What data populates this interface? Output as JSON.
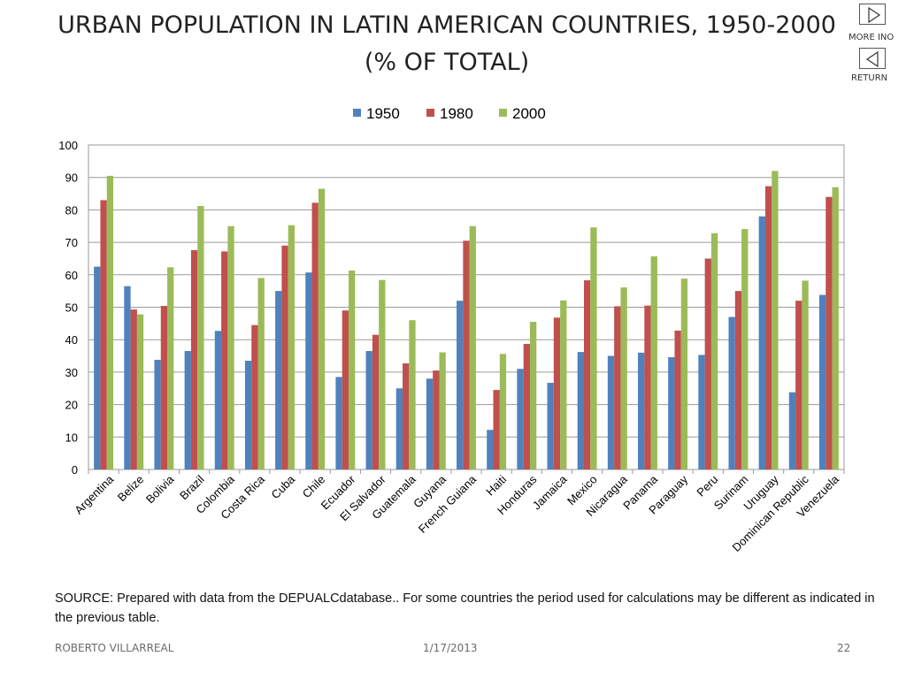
{
  "title_line1": "URBAN POPULATION IN LATIN AMERICAN COUNTRIES, 1950-2000",
  "title_line2": "(% OF TOTAL)",
  "nav": {
    "more_label": "MORE INO",
    "return_label": "RETURN"
  },
  "chart_data": {
    "type": "bar",
    "categories": [
      "Argentina",
      "Belize",
      "Bolivia",
      "Brazil",
      "Colombia",
      "Costa Rica",
      "Cuba",
      "Chile",
      "Ecuador",
      "El Salvador",
      "Guatemala",
      "Guyana",
      "French Guiana",
      "Haiti",
      "Honduras",
      "Jamaica",
      "Mexico",
      "Nicaragua",
      "Panama",
      "Paraguay",
      "Peru",
      "Surinam",
      "Uruguay",
      "Dominican Republic",
      "Venezuela"
    ],
    "series": [
      {
        "name": "1950",
        "color": "#4F81BD",
        "values": [
          62.5,
          56.5,
          33.8,
          36.5,
          42.7,
          33.5,
          55.0,
          60.7,
          28.5,
          36.5,
          25.0,
          28.0,
          52.0,
          12.2,
          31.0,
          26.7,
          36.2,
          35.0,
          36.0,
          34.6,
          35.3,
          47.0,
          78.0,
          23.8,
          53.8
        ]
      },
      {
        "name": "1980",
        "color": "#C0504D",
        "values": [
          83.0,
          49.3,
          50.4,
          67.6,
          67.2,
          44.5,
          69.0,
          82.2,
          49.0,
          41.5,
          32.7,
          30.5,
          70.5,
          24.5,
          38.7,
          46.8,
          58.3,
          50.3,
          50.5,
          42.8,
          65.0,
          55.0,
          87.3,
          52.0,
          84.0
        ]
      },
      {
        "name": "2000",
        "color": "#9BBB59",
        "values": [
          90.5,
          47.8,
          62.3,
          81.2,
          75.0,
          59.0,
          75.3,
          86.5,
          61.3,
          58.4,
          46.0,
          36.1,
          75.0,
          35.6,
          45.5,
          52.1,
          74.6,
          56.1,
          65.7,
          58.8,
          72.8,
          74.1,
          92.0,
          58.2,
          87.0
        ]
      }
    ],
    "ylim": [
      0,
      100
    ],
    "yticks": [
      "0",
      "10",
      "20",
      "30",
      "40",
      "50",
      "60",
      "70",
      "80",
      "90",
      "100"
    ],
    "grid": true,
    "legend": "top"
  },
  "source_text": "SOURCE:  Prepared with data from the DEPUALCdatabase.. For some countries the period used for calculations may be different as indicated in the previous table.",
  "footer": {
    "author": "ROBERTO VILLARREAL",
    "date": "1/17/2013",
    "page": "22"
  }
}
